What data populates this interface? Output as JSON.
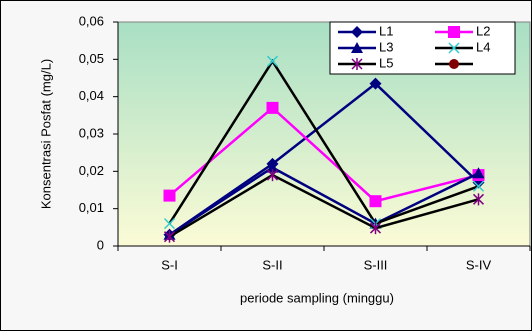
{
  "chart_data": {
    "type": "line",
    "y_label": "Konsentrasi Posfat (mg/L)",
    "x_label": "periode sampling (minggu)",
    "categories": [
      "S-I",
      "S-II",
      "S-III",
      "S-IV"
    ],
    "series": [
      {
        "name": "L1",
        "color": "#000080",
        "line_color": "#000080",
        "marker": "diamond",
        "values": [
          0.003,
          0.022,
          0.0435,
          0.017
        ]
      },
      {
        "name": "L2",
        "color": "#ff00ff",
        "line_color": "#ff00ff",
        "marker": "square",
        "values": [
          0.0135,
          0.037,
          0.012,
          0.019
        ]
      },
      {
        "name": "L3",
        "color": "#000080",
        "line_color": "#000080",
        "marker": "triangle",
        "values": [
          0.003,
          0.021,
          0.006,
          0.0195
        ]
      },
      {
        "name": "L4",
        "color": "#33cccc",
        "line_color": "#000000",
        "marker": "x",
        "values": [
          0.006,
          0.0495,
          0.006,
          0.016
        ]
      },
      {
        "name": "L5",
        "color": "#800080",
        "line_color": "#000000",
        "marker": "star",
        "values": [
          0.0025,
          0.019,
          0.0048,
          0.0125
        ]
      },
      {
        "name": null,
        "color": "#800000",
        "line_color": "#000000",
        "marker": "circle",
        "values": [
          null,
          null,
          null,
          null
        ]
      }
    ],
    "ylim": [
      0,
      0.06
    ],
    "yticks": [
      0,
      {
        "value": 0.01,
        "label": "0,01"
      },
      {
        "value": 0.02,
        "label": "0,02"
      },
      {
        "value": 0.03,
        "label": "0,03"
      },
      {
        "value": 0.04,
        "label": "0,04"
      },
      {
        "value": 0.05,
        "label": "0,05"
      },
      {
        "value": 0.06,
        "label": "0,06"
      }
    ],
    "legend": "top-right"
  }
}
